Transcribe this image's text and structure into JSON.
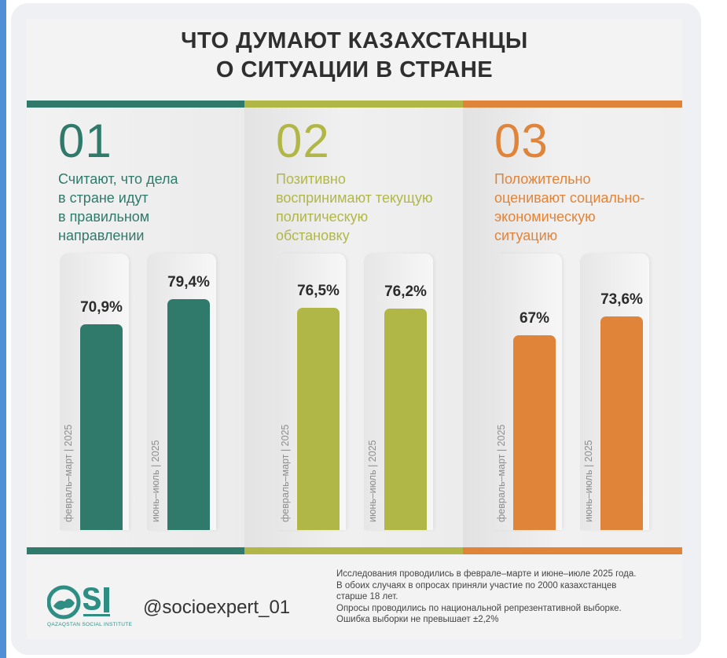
{
  "title": {
    "line1": "ЧТО ДУМАЮТ КАЗАХСТАНЦЫ",
    "line2": "О СИТУАЦИИ В СТРАНЕ"
  },
  "colors": {
    "teal": "#2f7a6b",
    "olive": "#b1b747",
    "orange": "#e0843a",
    "accent_left": "#4e8fd6"
  },
  "panels": [
    {
      "number": "01",
      "color": "#2f7a6b",
      "description": [
        "Считают, что дела",
        "в стране идут",
        "в правильном",
        "направлении"
      ]
    },
    {
      "number": "02",
      "color": "#b1b747",
      "description": [
        "Позитивно",
        "воспринимают текущую",
        "политическую",
        "обстановку"
      ]
    },
    {
      "number": "03",
      "color": "#e0843a",
      "description": [
        "Положительно",
        "оценивают социально-",
        "экономическую",
        "ситуацию"
      ]
    }
  ],
  "chart_data": {
    "type": "bar",
    "categories": [
      "февраль–март | 2025",
      "июнь–июль | 2025"
    ],
    "ylim": [
      0,
      100
    ],
    "series": [
      {
        "values": [
          70.9,
          79.4
        ],
        "labels": [
          "70,9%",
          "79,4%"
        ]
      },
      {
        "values": [
          76.5,
          76.2
        ],
        "labels": [
          "76,5%",
          "76,2%"
        ]
      },
      {
        "values": [
          67,
          73.6
        ],
        "labels": [
          "67%",
          "73,6%"
        ]
      }
    ]
  },
  "footer": {
    "logo_text": "QSI",
    "logo_subtitle": "QAZAQSTAN SOCIAL INSTITUTE",
    "handle": "@socioexpert_01",
    "note": [
      "Исследования проводились в феврале–марте и июне–июле 2025 года.",
      "В обоих случаях в опросах приняли участие по 2000 казахстанцев",
      "старше 18 лет.",
      "Опросы проводились по национальной репрезентативной выборке.",
      "Ошибка выборки не превышает ±2,2%"
    ]
  }
}
